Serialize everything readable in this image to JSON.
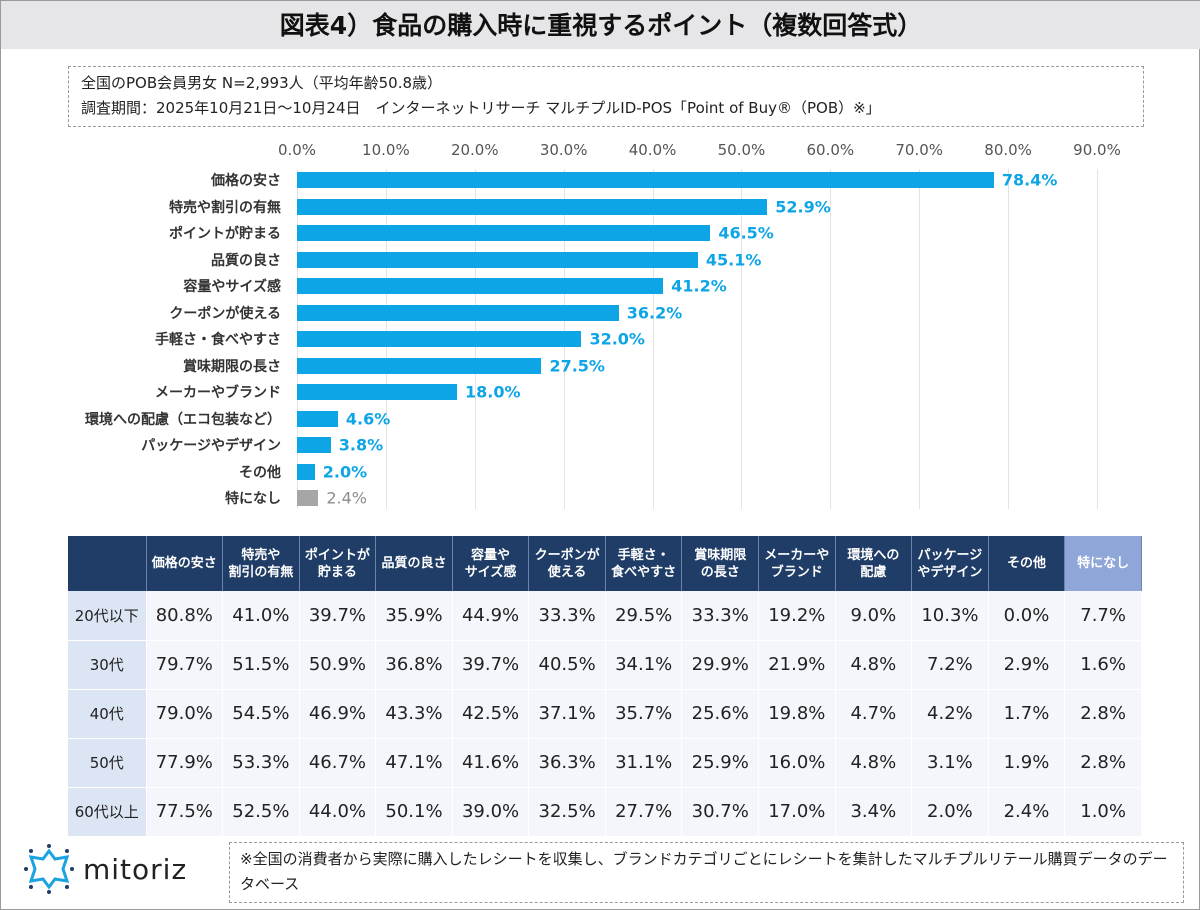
{
  "header": {
    "title": "図表4）食品の購入時に重視するポイント（複数回答式）"
  },
  "info": {
    "line1": "全国のPOB会員男女 N=2,993人（平均年齢50.8歳）",
    "line2": "調査期間：2025年10月21日～10月24日　インターネットリサーチ マルチプルID-POS「Point of Buy®（POB）※」"
  },
  "chart_data": {
    "type": "bar",
    "orientation": "horizontal",
    "xlim": [
      0,
      90
    ],
    "ticks": [
      "0.0%",
      "10.0%",
      "20.0%",
      "30.0%",
      "40.0%",
      "50.0%",
      "60.0%",
      "70.0%",
      "80.0%",
      "90.0%"
    ],
    "grid": true,
    "categories": [
      "価格の安さ",
      "特売や割引の有無",
      "ポイントが貯まる",
      "品質の良さ",
      "容量やサイズ感",
      "クーポンが使える",
      "手軽さ・食べやすさ",
      "賞味期限の長さ",
      "メーカーやブランド",
      "環境への配慮（エコ包装など）",
      "パッケージやデザイン",
      "その他",
      "特になし"
    ],
    "values": [
      78.4,
      52.9,
      46.5,
      45.1,
      41.2,
      36.2,
      32.0,
      27.5,
      18.0,
      4.6,
      3.8,
      2.0,
      2.4
    ],
    "labels": [
      "78.4%",
      "52.9%",
      "46.5%",
      "45.1%",
      "41.2%",
      "36.2%",
      "32.0%",
      "27.5%",
      "18.0%",
      "4.6%",
      "3.8%",
      "2.0%",
      "2.4%"
    ],
    "colors": {
      "main": "#0ea5e6",
      "none": "#a6a6a6",
      "none_label": "#8c8c8c"
    }
  },
  "table": {
    "headers": [
      "価格の安さ",
      "特売や\n割引の有無",
      "ポイントが\n貯まる",
      "品質の良さ",
      "容量や\nサイズ感",
      "クーポンが\n使える",
      "手軽さ・\n食べやすさ",
      "賞味期限\nの長さ",
      "メーカーや\nブランド",
      "環境への\n配慮",
      "パッケージ\nやデザイン",
      "その他",
      "特になし"
    ],
    "rows": [
      {
        "label": "20代以下",
        "values": [
          "80.8%",
          "41.0%",
          "39.7%",
          "35.9%",
          "44.9%",
          "33.3%",
          "29.5%",
          "33.3%",
          "19.2%",
          "9.0%",
          "10.3%",
          "0.0%",
          "7.7%"
        ]
      },
      {
        "label": "30代",
        "values": [
          "79.7%",
          "51.5%",
          "50.9%",
          "36.8%",
          "39.7%",
          "40.5%",
          "34.1%",
          "29.9%",
          "21.9%",
          "4.8%",
          "7.2%",
          "2.9%",
          "1.6%"
        ]
      },
      {
        "label": "40代",
        "values": [
          "79.0%",
          "54.5%",
          "46.9%",
          "43.3%",
          "42.5%",
          "37.1%",
          "35.7%",
          "25.6%",
          "19.8%",
          "4.7%",
          "4.2%",
          "1.7%",
          "2.8%"
        ]
      },
      {
        "label": "50代",
        "values": [
          "77.9%",
          "53.3%",
          "46.7%",
          "47.1%",
          "41.6%",
          "36.3%",
          "31.1%",
          "25.9%",
          "16.0%",
          "4.8%",
          "3.1%",
          "1.9%",
          "2.8%"
        ]
      },
      {
        "label": "60代以上",
        "values": [
          "77.5%",
          "52.5%",
          "44.0%",
          "50.1%",
          "39.0%",
          "32.5%",
          "27.7%",
          "30.7%",
          "17.0%",
          "3.4%",
          "2.0%",
          "2.4%",
          "1.0%"
        ]
      }
    ]
  },
  "footer": {
    "logo": "mitoriz",
    "note": "※全国の消費者から実際に購入したレシートを収集し、ブランドカテゴリごとにレシートを集計したマルチプルリテール購買データのデータベース"
  }
}
